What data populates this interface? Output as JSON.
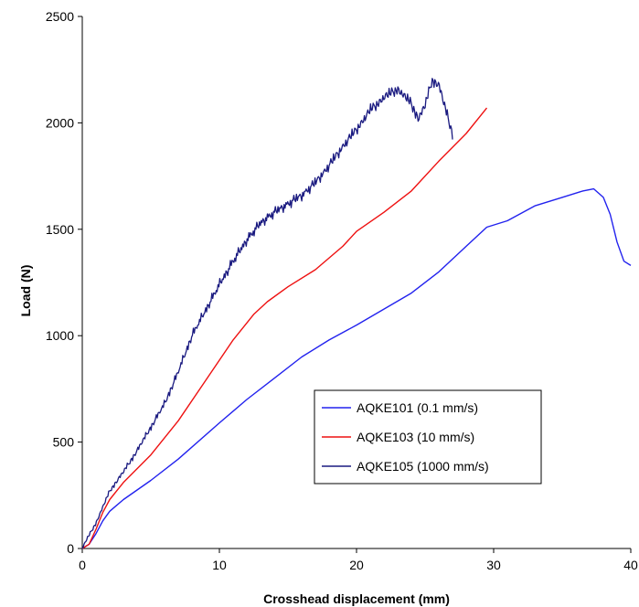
{
  "chart_data": {
    "type": "line",
    "title": "",
    "xlabel": "Crosshead displacement (mm)",
    "ylabel": "Load (N)",
    "xlim": [
      0,
      40
    ],
    "ylim": [
      0,
      2500
    ],
    "xticks": [
      0,
      10,
      20,
      30,
      40
    ],
    "yticks": [
      0,
      500,
      1000,
      1500,
      2000,
      2500
    ],
    "grid": false,
    "legend": "lower-right",
    "series": [
      {
        "name": "AQKE101 (0.1 mm/s)",
        "color": "#2222ee",
        "points": [
          [
            0,
            0
          ],
          [
            0.5,
            20
          ],
          [
            1,
            70
          ],
          [
            1.5,
            130
          ],
          [
            2,
            175
          ],
          [
            3,
            230
          ],
          [
            5,
            320
          ],
          [
            7,
            420
          ],
          [
            10,
            590
          ],
          [
            12,
            700
          ],
          [
            14,
            800
          ],
          [
            16,
            900
          ],
          [
            18,
            980
          ],
          [
            20,
            1050
          ],
          [
            22,
            1125
          ],
          [
            24,
            1200
          ],
          [
            26,
            1300
          ],
          [
            28,
            1420
          ],
          [
            29.5,
            1510
          ],
          [
            31,
            1540
          ],
          [
            33,
            1610
          ],
          [
            35,
            1650
          ],
          [
            36.5,
            1680
          ],
          [
            37.3,
            1690
          ],
          [
            38,
            1650
          ],
          [
            38.5,
            1570
          ],
          [
            39,
            1440
          ],
          [
            39.5,
            1350
          ],
          [
            40,
            1330
          ]
        ],
        "noise": 0
      },
      {
        "name": "AQKE103 (10 mm/s)",
        "color": "#ee1111",
        "points": [
          [
            0,
            0
          ],
          [
            0.5,
            20
          ],
          [
            1,
            90
          ],
          [
            1.5,
            170
          ],
          [
            2,
            230
          ],
          [
            3,
            310
          ],
          [
            5,
            440
          ],
          [
            7,
            600
          ],
          [
            9,
            790
          ],
          [
            11,
            980
          ],
          [
            12.5,
            1100
          ],
          [
            13.5,
            1160
          ],
          [
            15,
            1230
          ],
          [
            17,
            1310
          ],
          [
            19,
            1420
          ],
          [
            20,
            1490
          ],
          [
            22,
            1580
          ],
          [
            24,
            1680
          ],
          [
            26,
            1820
          ],
          [
            28,
            1950
          ],
          [
            29.5,
            2070
          ]
        ],
        "noise": 0
      },
      {
        "name": "AQKE105 (1000 mm/s)",
        "color": "#1a1a80",
        "points": [
          [
            0,
            0
          ],
          [
            0.3,
            40
          ],
          [
            1,
            120
          ],
          [
            2,
            270
          ],
          [
            3,
            360
          ],
          [
            4,
            460
          ],
          [
            5,
            570
          ],
          [
            6,
            680
          ],
          [
            7,
            830
          ],
          [
            8,
            1000
          ],
          [
            9,
            1120
          ],
          [
            10,
            1240
          ],
          [
            11,
            1350
          ],
          [
            12,
            1450
          ],
          [
            13,
            1530
          ],
          [
            14,
            1580
          ],
          [
            15,
            1620
          ],
          [
            16,
            1660
          ],
          [
            17,
            1720
          ],
          [
            18,
            1800
          ],
          [
            19,
            1890
          ],
          [
            20,
            1970
          ],
          [
            21,
            2060
          ],
          [
            22,
            2120
          ],
          [
            23,
            2160
          ],
          [
            24,
            2090
          ],
          [
            24.5,
            2020
          ],
          [
            25,
            2080
          ],
          [
            25.5,
            2200
          ],
          [
            26,
            2180
          ],
          [
            26.5,
            2060
          ],
          [
            27,
            1950
          ]
        ],
        "noise": 28
      }
    ]
  }
}
